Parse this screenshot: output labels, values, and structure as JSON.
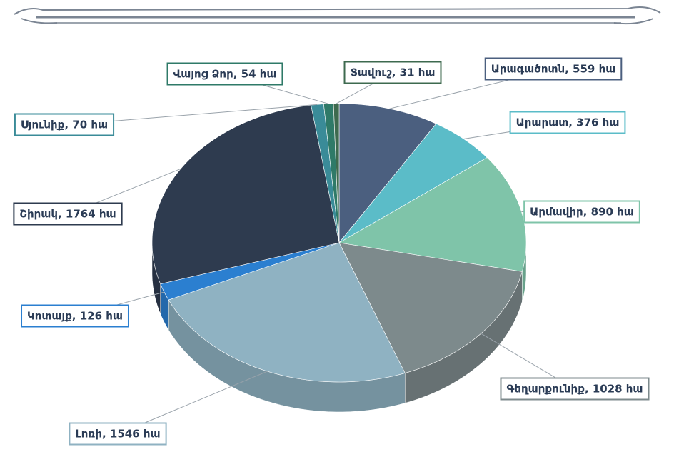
{
  "chart_data": {
    "type": "pie3d",
    "values": [
      559,
      376,
      890,
      1028,
      1546,
      126,
      1764,
      70,
      54,
      31
    ],
    "value_labels": [
      "Արագածոտն, 559 հա",
      "Արարատ, 376 հա",
      "Արմավիր, 890 հա",
      "Գեղարքունիք, 1028 հա",
      "Լոռի, 1546 հա",
      "Կոտայք, 126 հա",
      "Շիրակ, 1764 հա",
      "Սյունիք, 70 հա",
      "Վայոց Ձոր, 54 հա",
      "Տավուշ, 31 հա"
    ],
    "colors": [
      "#4b5f7f",
      "#5bbcc8",
      "#7fc4a9",
      "#7d8a8c",
      "#8fb2c2",
      "#2b7fd0",
      "#2e3b4f",
      "#3a8b98",
      "#2f7a68",
      "#3e6a4f"
    ]
  }
}
